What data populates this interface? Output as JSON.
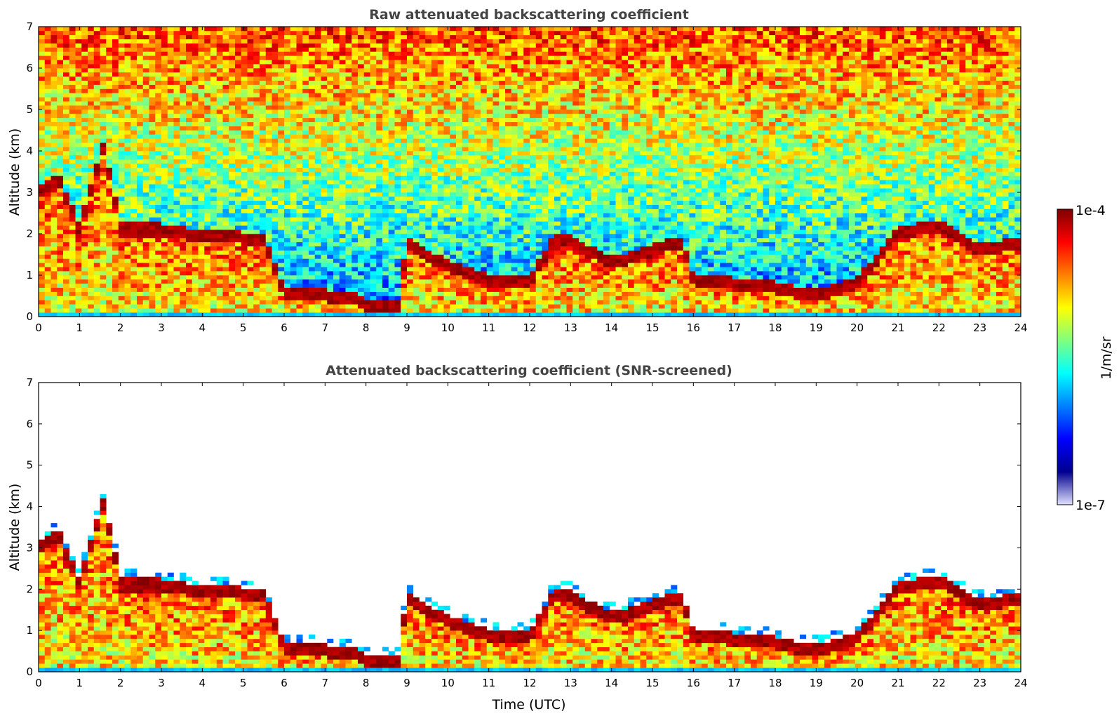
{
  "chart_data": [
    {
      "type": "heatmap",
      "title": "Raw attenuated backscattering coefficient",
      "xlabel": "",
      "ylabel": "Altitude (km)",
      "xlim": [
        0,
        24
      ],
      "ylim": [
        0,
        7
      ],
      "xticks": [
        "0",
        "1",
        "2",
        "3",
        "4",
        "5",
        "6",
        "7",
        "8",
        "9",
        "10",
        "11",
        "12",
        "13",
        "14",
        "15",
        "16",
        "17",
        "18",
        "19",
        "20",
        "21",
        "22",
        "23",
        "24"
      ],
      "yticks": [
        "0",
        "1",
        "2",
        "3",
        "4",
        "5",
        "6",
        "7"
      ],
      "colormap": "jet",
      "color_scale": "log",
      "grid": false,
      "features": {
        "cloud_top_km": [
          [
            0,
            3.0
          ],
          [
            0.5,
            3.3
          ],
          [
            1,
            2.1
          ],
          [
            1.6,
            4.1
          ],
          [
            2,
            2.1
          ],
          [
            3,
            2.1
          ],
          [
            4,
            1.95
          ],
          [
            5,
            1.9
          ],
          [
            5.5,
            1.9
          ],
          [
            6,
            0.6
          ],
          [
            7,
            0.5
          ],
          [
            7.7,
            0.5
          ],
          [
            8,
            0.3
          ],
          [
            8.8,
            0.2
          ],
          [
            9,
            1.8
          ],
          [
            10,
            1.2
          ],
          [
            11,
            0.9
          ],
          [
            12,
            0.8
          ],
          [
            12.6,
            1.9
          ],
          [
            13,
            1.8
          ],
          [
            14,
            1.3
          ],
          [
            15,
            1.6
          ],
          [
            15.7,
            1.8
          ],
          [
            16,
            0.9
          ],
          [
            17,
            0.8
          ],
          [
            18,
            0.7
          ],
          [
            19,
            0.5
          ],
          [
            20,
            0.8
          ],
          [
            21,
            2.0
          ],
          [
            22,
            2.2
          ],
          [
            23,
            1.6
          ],
          [
            24,
            1.8
          ]
        ],
        "noise_dominated_above_km": 2.5,
        "strong_aerosol_layer_top_km": 2.0
      }
    },
    {
      "type": "heatmap",
      "title": "Attenuated backscattering coefficient (SNR-screened)",
      "xlabel": "Time (UTC)",
      "ylabel": "Altitude (km)",
      "xlim": [
        0,
        24
      ],
      "ylim": [
        0,
        7
      ],
      "xticks": [
        "0",
        "1",
        "2",
        "3",
        "4",
        "5",
        "6",
        "7",
        "8",
        "9",
        "10",
        "11",
        "12",
        "13",
        "14",
        "15",
        "16",
        "17",
        "18",
        "19",
        "20",
        "21",
        "22",
        "23",
        "24"
      ],
      "yticks": [
        "0",
        "1",
        "2",
        "3",
        "4",
        "5",
        "6",
        "7"
      ],
      "colormap": "jet",
      "color_scale": "log",
      "grid": false,
      "features": {
        "cloud_top_km": [
          [
            0,
            3.0
          ],
          [
            0.5,
            3.3
          ],
          [
            1,
            2.1
          ],
          [
            1.6,
            4.1
          ],
          [
            2,
            2.1
          ],
          [
            3,
            2.1
          ],
          [
            4,
            1.95
          ],
          [
            5,
            1.9
          ],
          [
            5.5,
            1.9
          ],
          [
            6,
            0.6
          ],
          [
            7,
            0.5
          ],
          [
            7.7,
            0.5
          ],
          [
            8,
            0.3
          ],
          [
            8.8,
            0.2
          ],
          [
            9,
            1.8
          ],
          [
            10,
            1.2
          ],
          [
            11,
            0.9
          ],
          [
            12,
            0.8
          ],
          [
            12.6,
            1.9
          ],
          [
            13,
            1.8
          ],
          [
            14,
            1.3
          ],
          [
            15,
            1.6
          ],
          [
            15.7,
            1.8
          ],
          [
            16,
            0.9
          ],
          [
            17,
            0.8
          ],
          [
            18,
            0.7
          ],
          [
            19,
            0.5
          ],
          [
            20,
            0.8
          ],
          [
            21,
            2.0
          ],
          [
            22,
            2.2
          ],
          [
            23,
            1.6
          ],
          [
            24,
            1.8
          ]
        ],
        "screened_above_km": 2.4
      }
    }
  ],
  "colorbar": {
    "max_label": "1e-4",
    "min_label": "1e-7",
    "unit_label": "1/m/sr",
    "stops": [
      "#7f0000",
      "#ff0000",
      "#ff7f00",
      "#ffff00",
      "#7fff7f",
      "#00ffff",
      "#007fff",
      "#0000ff",
      "#00008f",
      "#e0e0ff"
    ]
  }
}
